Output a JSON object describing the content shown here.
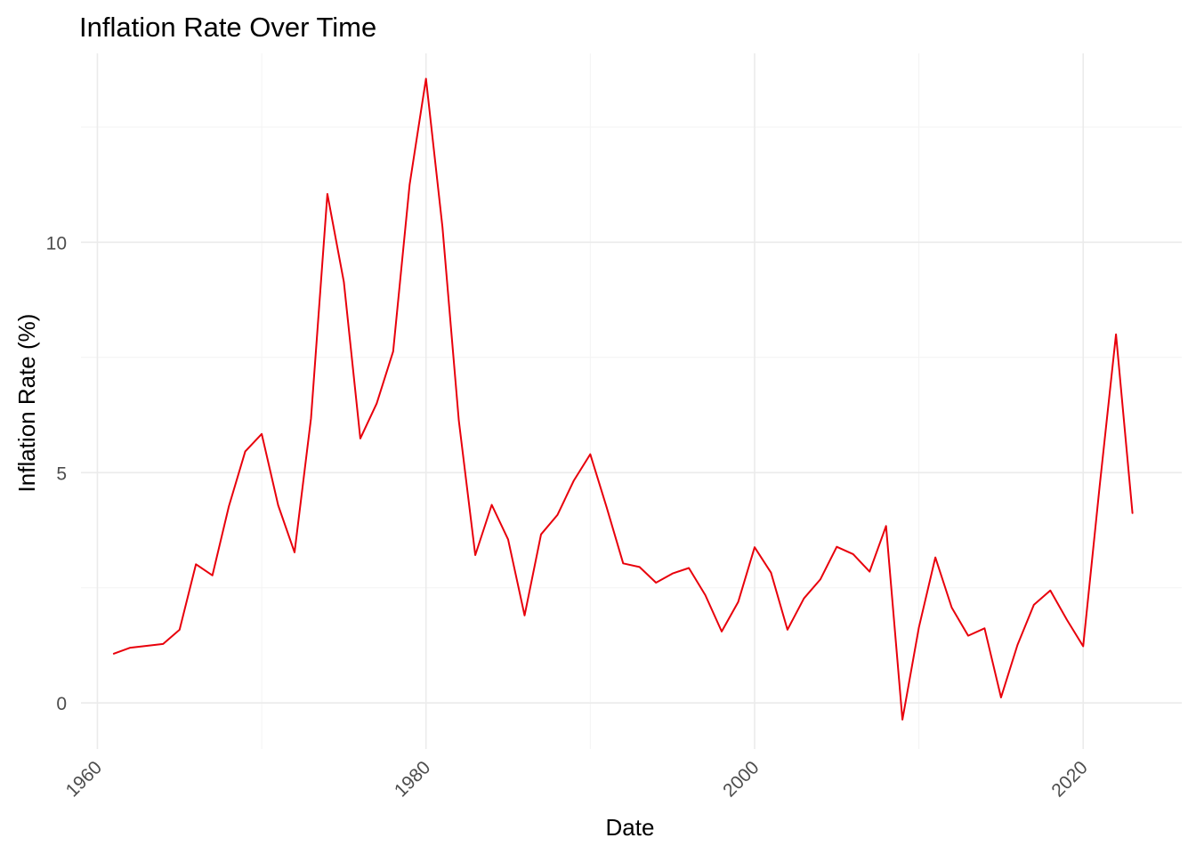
{
  "chart_data": {
    "type": "line",
    "title": "Inflation Rate Over Time",
    "xlabel": "Date",
    "ylabel": "Inflation Rate (%)",
    "xlim": [
      1959,
      2026
    ],
    "ylim": [
      -1.0,
      14.1
    ],
    "x_ticks": [
      1960,
      1980,
      2000,
      2020
    ],
    "x_tick_labels": [
      "1960",
      "1980",
      "2000",
      "2020"
    ],
    "y_ticks": [
      0,
      5,
      10
    ],
    "y_tick_labels": [
      "0",
      "5",
      "10"
    ],
    "grid": true,
    "legend": "none",
    "series": [
      {
        "name": "Inflation Rate (%)",
        "color": "#e8000b",
        "x": [
          1961,
          1962,
          1963,
          1964,
          1965,
          1966,
          1967,
          1968,
          1969,
          1970,
          1971,
          1972,
          1973,
          1974,
          1975,
          1976,
          1977,
          1978,
          1979,
          1980,
          1981,
          1982,
          1983,
          1984,
          1985,
          1986,
          1987,
          1988,
          1989,
          1990,
          1991,
          1992,
          1993,
          1994,
          1995,
          1996,
          1997,
          1998,
          1999,
          2000,
          2001,
          2002,
          2003,
          2004,
          2005,
          2006,
          2007,
          2008,
          2009,
          2010,
          2011,
          2012,
          2013,
          2014,
          2015,
          2016,
          2017,
          2018,
          2019,
          2020,
          2021,
          2022,
          2023
        ],
        "y": [
          1.07,
          1.2,
          1.24,
          1.28,
          1.59,
          3.01,
          2.77,
          4.27,
          5.46,
          5.84,
          4.29,
          3.27,
          6.18,
          11.05,
          9.14,
          5.74,
          6.5,
          7.63,
          11.25,
          13.55,
          10.33,
          6.13,
          3.21,
          4.3,
          3.55,
          1.9,
          3.66,
          4.08,
          4.83,
          5.4,
          4.24,
          3.03,
          2.95,
          2.61,
          2.81,
          2.93,
          2.34,
          1.55,
          2.19,
          3.38,
          2.83,
          1.59,
          2.27,
          2.68,
          3.39,
          3.23,
          2.85,
          3.84,
          -0.36,
          1.64,
          3.16,
          2.07,
          1.46,
          1.62,
          0.12,
          1.26,
          2.13,
          2.44,
          1.81,
          1.23,
          4.7,
          8.0,
          4.12
        ]
      }
    ]
  }
}
